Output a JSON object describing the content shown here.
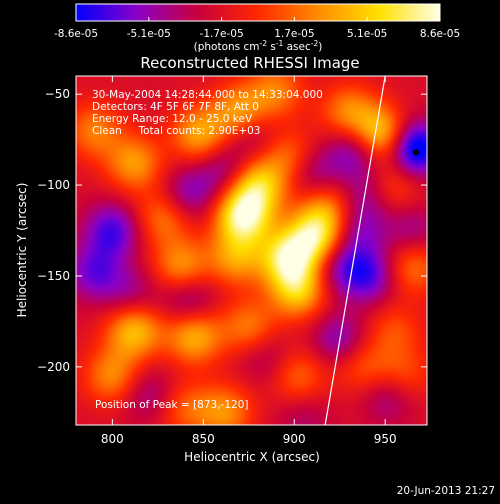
{
  "chart_data": {
    "type": "heatmap",
    "title": "Reconstructed RHESSI Image",
    "xlabel": "Heliocentric X (arcsec)",
    "ylabel": "Heliocentric Y (arcsec)",
    "xlim": [
      780,
      973
    ],
    "ylim": [
      -232,
      -40
    ],
    "x_ticks": [
      800,
      850,
      900,
      950
    ],
    "y_ticks": [
      -50,
      -100,
      -150,
      -200
    ],
    "colorbar": {
      "ticks": [
        "-8.6e-05",
        "-5.1e-05",
        "-1.7e-05",
        "1.7e-05",
        "5.1e-05",
        "8.6e-05"
      ],
      "label": "(photons cm",
      "label_sup1": "-2",
      "label_mid": " s",
      "label_sup2": "-1",
      "label_mid2": " asec",
      "label_sup3": "-2",
      "label_end": ")",
      "min": -8.6e-05,
      "max": 8.6e-05,
      "colors": [
        "#0000ff",
        "#8a00c8",
        "#c8003c",
        "#ff2800",
        "#ff8c00",
        "#ffe100",
        "#ffffe6"
      ]
    },
    "annotations": [
      "30-May-2004 14:28:44.000 to 14:33:04.000",
      "Detectors: 4F 5F 6F 7F 8F, Att 0",
      "Energy Range: 12.0 - 25.0 keV",
      "Clean     Total counts: 2.90E+03"
    ],
    "peak_label": "Position of Peak = [873,-120]",
    "peak": [
      873,
      -120
    ],
    "limb": [
      [
        917,
        -232
      ],
      [
        950,
        -40
      ]
    ],
    "peak_marker": [
      967,
      -82
    ],
    "blobs": [
      {
        "x": 872,
        "y": -117,
        "v": 1.0
      },
      {
        "x": 880,
        "y": -100,
        "v": 0.75
      },
      {
        "x": 868,
        "y": -140,
        "v": 0.55
      },
      {
        "x": 897,
        "y": -140,
        "v": 0.9
      },
      {
        "x": 902,
        "y": -158,
        "v": 0.7
      },
      {
        "x": 912,
        "y": -128,
        "v": 0.85
      },
      {
        "x": 918,
        "y": -112,
        "v": 0.45
      },
      {
        "x": 947,
        "y": -73,
        "v": 0.9
      },
      {
        "x": 930,
        "y": -60,
        "v": 0.5
      },
      {
        "x": 870,
        "y": -60,
        "v": 0.6
      },
      {
        "x": 890,
        "y": -48,
        "v": 0.45
      },
      {
        "x": 898,
        "y": -85,
        "v": 0.45
      },
      {
        "x": 848,
        "y": -72,
        "v": 0.6
      },
      {
        "x": 812,
        "y": -88,
        "v": 0.55
      },
      {
        "x": 790,
        "y": -70,
        "v": 0.45
      },
      {
        "x": 838,
        "y": -145,
        "v": 0.55
      },
      {
        "x": 812,
        "y": -180,
        "v": 0.7
      },
      {
        "x": 800,
        "y": -205,
        "v": 0.5
      },
      {
        "x": 845,
        "y": -183,
        "v": 0.65
      },
      {
        "x": 875,
        "y": -178,
        "v": 0.45
      },
      {
        "x": 862,
        "y": -225,
        "v": 0.5
      },
      {
        "x": 840,
        "y": -223,
        "v": 0.35
      },
      {
        "x": 902,
        "y": -205,
        "v": 0.4
      },
      {
        "x": 938,
        "y": -200,
        "v": 0.35
      },
      {
        "x": 960,
        "y": -205,
        "v": 0.35
      },
      {
        "x": 965,
        "y": -145,
        "v": 0.45
      },
      {
        "x": 955,
        "y": -180,
        "v": 0.3
      },
      {
        "x": 828,
        "y": -118,
        "v": 0.45
      },
      {
        "x": 955,
        "y": -100,
        "v": 0.35
      },
      {
        "x": 820,
        "y": -215,
        "v": -0.3
      },
      {
        "x": 842,
        "y": -105,
        "v": -0.4
      },
      {
        "x": 800,
        "y": -125,
        "v": -0.55
      },
      {
        "x": 790,
        "y": -148,
        "v": -0.45
      },
      {
        "x": 810,
        "y": -160,
        "v": -0.3
      },
      {
        "x": 842,
        "y": -163,
        "v": -0.4
      },
      {
        "x": 862,
        "y": -92,
        "v": -0.35
      },
      {
        "x": 910,
        "y": -93,
        "v": -0.4
      },
      {
        "x": 935,
        "y": -80,
        "v": -0.55
      },
      {
        "x": 966,
        "y": -80,
        "v": -0.9
      },
      {
        "x": 925,
        "y": -145,
        "v": -0.4
      },
      {
        "x": 935,
        "y": -125,
        "v": -0.35
      },
      {
        "x": 942,
        "y": -150,
        "v": -0.5
      },
      {
        "x": 925,
        "y": -185,
        "v": -0.4
      },
      {
        "x": 952,
        "y": -215,
        "v": -0.35
      },
      {
        "x": 885,
        "y": -195,
        "v": -0.25
      },
      {
        "x": 876,
        "y": -72,
        "v": -0.3
      },
      {
        "x": 940,
        "y": -105,
        "v": -0.3
      },
      {
        "x": 965,
        "y": -125,
        "v": -0.3
      },
      {
        "x": 905,
        "y": -228,
        "v": -0.2
      }
    ]
  },
  "footer": {
    "timestamp": "20-Jun-2013 21:27"
  }
}
